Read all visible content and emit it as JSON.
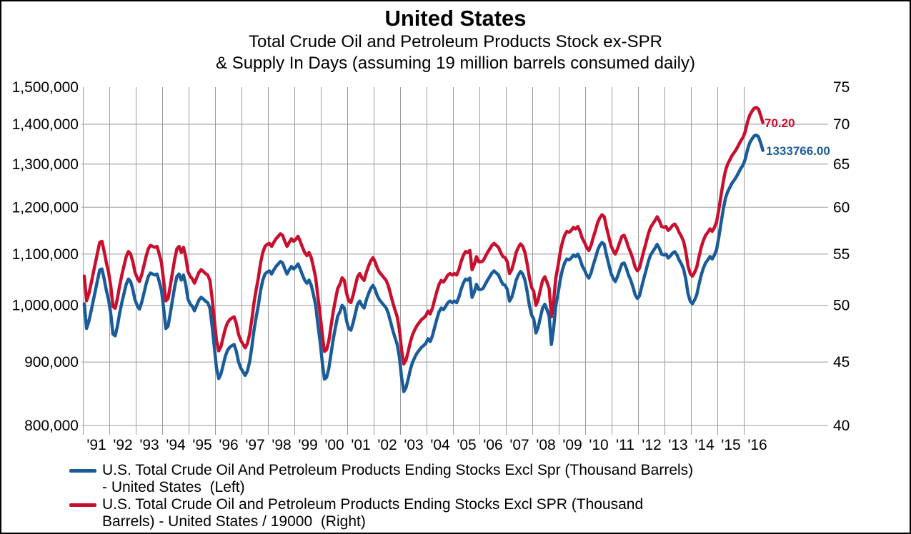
{
  "title": "United States",
  "subtitle_line1": "Total Crude Oil and Petroleum Products Stock ex-SPR",
  "subtitle_line2": "& Supply In Days (assuming 19 million barrels consumed daily)",
  "end_labels": {
    "red": "70.20",
    "blue": "1333766.00"
  },
  "legend": {
    "entries": [
      {
        "line1": "U.S. Total Crude Oil And Petroleum Products Ending Stocks Excl Spr (Thousand Barrels)",
        "line2": "- United States  (Left)",
        "color": "#1A5C99"
      },
      {
        "line1": "U.S. Total Crude Oil and Petroleum Products Ending Stocks Excl SPR (Thousand",
        "line2": "Barrels) - United States / 19000  (Right)",
        "color": "#C8102E"
      }
    ]
  },
  "chart_data": {
    "type": "line",
    "title": "United States",
    "subtitle": "Total Crude Oil and Petroleum Products Stock ex-SPR & Supply In Days (assuming 19 million barrels consumed daily)",
    "grid": true,
    "x_axis": {
      "unit": "year",
      "start_year": 1991,
      "end_year": 2016,
      "labels": [
        "'91",
        "'92",
        "'93",
        "'94",
        "'95",
        "'96",
        "'97",
        "'98",
        "'99",
        "'00",
        "'01",
        "'02",
        "'03",
        "'04",
        "'05",
        "'06",
        "'07",
        "'08",
        "'09",
        "'10",
        "'11",
        "'12",
        "'13",
        "'14",
        "'15",
        "'16"
      ]
    },
    "y_axis_left": {
      "scale": "log",
      "unit": "thousand barrels",
      "labels": [
        "1,500,000",
        "1,400,000",
        "1,300,000",
        "1,200,000",
        "1,100,000",
        "1,000,000",
        "900,000",
        "800,000"
      ],
      "values": [
        1500000,
        1400000,
        1300000,
        1200000,
        1100000,
        1000000,
        900000,
        800000
      ]
    },
    "y_axis_right": {
      "scale": "log",
      "unit": "days of supply",
      "labels": [
        "75",
        "70",
        "65",
        "60",
        "55",
        "50",
        "45",
        "40"
      ],
      "values": [
        75,
        70,
        65,
        60,
        55,
        50,
        45,
        40
      ]
    },
    "series": [
      {
        "name": "U.S. Total Crude Oil And Petroleum Products Ending Stocks Excl Spr (Thousand Barrels) - United States  (Left)",
        "axis": "left",
        "color": "#1A5C99",
        "start": "1991-01",
        "interval": "monthly",
        "end_value_label": "1333766.00",
        "values": [
          1003000,
          958000,
          970000,
          988000,
          1008000,
          1028000,
          1048000,
          1068000,
          1070000,
          1050000,
          1028000,
          1010000,
          985000,
          948000,
          945000,
          962000,
          985000,
          1005000,
          1022000,
          1040000,
          1050000,
          1045000,
          1030000,
          1010000,
          1000000,
          993000,
          1005000,
          1022000,
          1040000,
          1055000,
          1062000,
          1060000,
          1058000,
          1060000,
          1045000,
          1028000,
          995000,
          958000,
          962000,
          985000,
          1010000,
          1035000,
          1055000,
          1060000,
          1048000,
          1058000,
          1040000,
          1012000,
          1003000,
          998000,
          990000,
          1000000,
          1010000,
          1015000,
          1012000,
          1008000,
          1005000,
          995000,
          962000,
          925000,
          890000,
          873000,
          880000,
          895000,
          910000,
          920000,
          925000,
          928000,
          930000,
          918000,
          900000,
          890000,
          884000,
          878000,
          885000,
          900000,
          925000,
          955000,
          978000,
          1000000,
          1028000,
          1048000,
          1060000,
          1064000,
          1066000,
          1060000,
          1068000,
          1075000,
          1080000,
          1085000,
          1082000,
          1070000,
          1060000,
          1068000,
          1075000,
          1070000,
          1074000,
          1080000,
          1070000,
          1058000,
          1048000,
          1042000,
          1048000,
          1038000,
          1020000,
          1000000,
          965000,
          935000,
          900000,
          872000,
          875000,
          890000,
          915000,
          940000,
          960000,
          980000,
          988000,
          1000000,
          995000,
          972000,
          958000,
          955000,
          968000,
          985000,
          1002000,
          1008000,
          1000000,
          995000,
          1010000,
          1022000,
          1032000,
          1038000,
          1030000,
          1018000,
          1010000,
          1005000,
          1000000,
          995000,
          985000,
          970000,
          955000,
          942000,
          930000,
          908000,
          875000,
          852000,
          858000,
          872000,
          888000,
          900000,
          908000,
          915000,
          920000,
          925000,
          928000,
          932000,
          940000,
          935000,
          945000,
          960000,
          975000,
          988000,
          995000,
          992000,
          998000,
          1005000,
          1008000,
          1005000,
          1008000,
          1005000,
          1015000,
          1030000,
          1042000,
          1050000,
          1048000,
          1052000,
          1015000,
          1025000,
          1040000,
          1030000,
          1030000,
          1032000,
          1040000,
          1048000,
          1055000,
          1062000,
          1066000,
          1062000,
          1058000,
          1048000,
          1040000,
          1038000,
          1030000,
          1008000,
          1015000,
          1030000,
          1048000,
          1058000,
          1065000,
          1060000,
          1048000,
          1026000,
          1000000,
          982000,
          975000,
          950000,
          960000,
          978000,
          995000,
          1002000,
          992000,
          980000,
          930000,
          958000,
          1000000,
          1022000,
          1048000,
          1068000,
          1082000,
          1090000,
          1088000,
          1092000,
          1098000,
          1095000,
          1100000,
          1090000,
          1076000,
          1068000,
          1058000,
          1052000,
          1062000,
          1078000,
          1092000,
          1108000,
          1118000,
          1124000,
          1120000,
          1098000,
          1080000,
          1062000,
          1052000,
          1045000,
          1055000,
          1068000,
          1080000,
          1082000,
          1072000,
          1058000,
          1048000,
          1035000,
          1020000,
          1013000,
          1018000,
          1035000,
          1052000,
          1068000,
          1085000,
          1098000,
          1105000,
          1112000,
          1120000,
          1112000,
          1100000,
          1098000,
          1100000,
          1092000,
          1096000,
          1102000,
          1105000,
          1098000,
          1088000,
          1080000,
          1070000,
          1050000,
          1022000,
          1008000,
          1003000,
          1010000,
          1020000,
          1040000,
          1058000,
          1072000,
          1082000,
          1088000,
          1095000,
          1090000,
          1098000,
          1110000,
          1135000,
          1165000,
          1195000,
          1220000,
          1235000,
          1245000,
          1255000,
          1262000,
          1270000,
          1280000,
          1290000,
          1298000,
          1312000,
          1335000,
          1352000,
          1362000,
          1370000,
          1372000,
          1368000,
          1352000,
          1333766
        ]
      },
      {
        "name": "U.S. Total Crude Oil and Petroleum Products Ending Stocks Excl SPR (Thousand Barrels) - United States / 19000  (Right)",
        "axis": "right",
        "color": "#C8102E",
        "derived": "left series divided by 19000",
        "divisor": 19000,
        "end_value_label": "70.20"
      }
    ]
  }
}
